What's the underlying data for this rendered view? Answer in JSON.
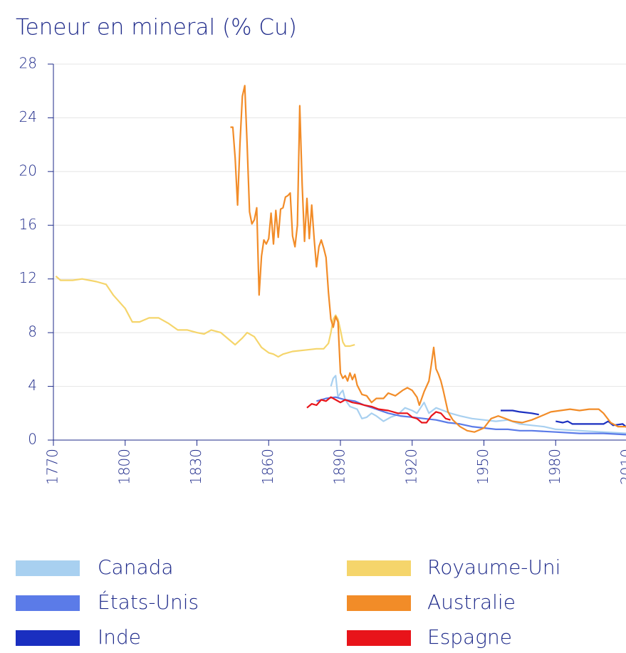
{
  "chart_data": {
    "type": "line",
    "title": "Teneur en mineral (% Cu)",
    "xlim": [
      1770,
      2010
    ],
    "xticks": [
      1770,
      1800,
      1830,
      1860,
      1890,
      1920,
      1950,
      1980,
      2010
    ],
    "ylim": [
      0,
      28
    ],
    "yticks": [
      0,
      4,
      8,
      12,
      16,
      20,
      24,
      28
    ],
    "grid": true,
    "series": [
      {
        "name": "Canada",
        "color": "#a8d0f0",
        "x": [
          1886,
          1887,
          1888,
          1889,
          1890,
          1891,
          1892,
          1894,
          1897,
          1899,
          1901,
          1903,
          1905,
          1908,
          1911,
          1914,
          1917,
          1920,
          1922,
          1925,
          1927,
          1930,
          1933,
          1936,
          1940,
          1945,
          1950,
          1955,
          1960,
          1965,
          1970,
          1975,
          1980,
          1990,
          2000,
          2010
        ],
        "values": [
          4.0,
          4.6,
          4.8,
          3.2,
          3.5,
          3.7,
          3.0,
          2.5,
          2.3,
          1.6,
          1.7,
          2.0,
          1.8,
          1.4,
          1.7,
          1.9,
          2.4,
          2.2,
          2.0,
          2.8,
          2.0,
          2.4,
          2.2,
          2.0,
          1.8,
          1.6,
          1.5,
          1.4,
          1.5,
          1.2,
          1.1,
          1.0,
          0.8,
          0.7,
          0.6,
          0.5
        ]
      },
      {
        "name": "États-Unis",
        "color": "#5b7be8",
        "x": [
          1880,
          1884,
          1888,
          1892,
          1896,
          1900,
          1905,
          1910,
          1915,
          1920,
          1925,
          1930,
          1935,
          1940,
          1945,
          1950,
          1955,
          1960,
          1965,
          1970,
          1980,
          1990,
          2000,
          2010
        ],
        "values": [
          2.9,
          3.1,
          3.2,
          3.0,
          2.9,
          2.6,
          2.3,
          2.0,
          1.8,
          1.7,
          1.6,
          1.5,
          1.3,
          1.2,
          1.0,
          0.9,
          0.8,
          0.8,
          0.7,
          0.7,
          0.6,
          0.5,
          0.5,
          0.4
        ]
      },
      {
        "name": "Inde",
        "color": "#1a2fc0",
        "x": [
          1957,
          1962,
          1965,
          1970,
          1973,
          1976,
          1980,
          1983,
          1985,
          1987,
          1995,
          2000,
          2002,
          2004,
          2008,
          2010
        ],
        "values": [
          2.2,
          2.2,
          2.1,
          2.0,
          1.9,
          null,
          1.4,
          1.3,
          1.4,
          1.2,
          1.2,
          1.2,
          1.4,
          1.1,
          1.2,
          0.9
        ]
      },
      {
        "name": "Royaume-Uni",
        "color": "#f5d56b",
        "x": [
          1771,
          1773,
          1778,
          1782,
          1788,
          1792,
          1795,
          1800,
          1803,
          1806,
          1810,
          1814,
          1818,
          1822,
          1826,
          1830,
          1833,
          1836,
          1840,
          1844,
          1846,
          1849,
          1851,
          1854,
          1857,
          1860,
          1862,
          1864,
          1866,
          1870,
          1875,
          1880,
          1883,
          1885,
          1886,
          1887,
          1888,
          1889,
          1890,
          1891,
          1892,
          1894,
          1896
        ],
        "values": [
          12.2,
          11.9,
          11.9,
          12.0,
          11.8,
          11.6,
          10.8,
          9.8,
          8.8,
          8.8,
          9.1,
          9.1,
          8.7,
          8.2,
          8.2,
          8.0,
          7.9,
          8.2,
          8.0,
          7.4,
          7.1,
          7.6,
          8.0,
          7.7,
          6.9,
          6.5,
          6.4,
          6.2,
          6.4,
          6.6,
          6.7,
          6.8,
          6.8,
          7.2,
          8.0,
          9.0,
          9.3,
          9.0,
          8.2,
          7.3,
          7.0,
          7.0,
          7.1
        ]
      },
      {
        "name": "Australie",
        "color": "#f28c28",
        "x": [
          1844,
          1845,
          1846,
          1847,
          1848,
          1849,
          1850,
          1851,
          1852,
          1853,
          1854,
          1855,
          1856,
          1857,
          1858,
          1859,
          1860,
          1861,
          1862,
          1863,
          1864,
          1865,
          1866,
          1867,
          1868,
          1869,
          1870,
          1871,
          1872,
          1873,
          1874,
          1875,
          1876,
          1877,
          1878,
          1879,
          1880,
          1881,
          1882,
          1883,
          1884,
          1885,
          1886,
          1887,
          1888,
          1889,
          1890,
          1891,
          1892,
          1893,
          1894,
          1895,
          1896,
          1897,
          1899,
          1901,
          1903,
          1905,
          1908,
          1910,
          1913,
          1916,
          1918,
          1920,
          1922,
          1923,
          1925,
          1927,
          1928,
          1929,
          1930,
          1931,
          1932,
          1933,
          1935,
          1937,
          1940,
          1943,
          1946,
          1950,
          1953,
          1956,
          1959,
          1962,
          1966,
          1970,
          1974,
          1978,
          1982,
          1986,
          1990,
          1994,
          1998,
          2000,
          2003,
          2006,
          2010
        ],
        "values": [
          23.3,
          23.3,
          21,
          17.5,
          22,
          25.6,
          26.4,
          22,
          17,
          16.1,
          16.4,
          17.3,
          10.8,
          13.7,
          14.9,
          14.6,
          15,
          16.9,
          14.6,
          17.1,
          15.1,
          17.2,
          17.3,
          18.1,
          18.2,
          18.4,
          15.2,
          14.4,
          16,
          24.9,
          19,
          14.8,
          18,
          15,
          17.5,
          15,
          12.9,
          14.4,
          14.9,
          14.3,
          13.6,
          11,
          9.0,
          8.4,
          9.2,
          8.8,
          5.0,
          4.6,
          4.8,
          4.4,
          5.0,
          4.5,
          4.9,
          4.1,
          3.4,
          3.3,
          2.8,
          3.1,
          3.1,
          3.5,
          3.3,
          3.7,
          3.9,
          3.7,
          3.2,
          2.6,
          3.6,
          4.4,
          5.6,
          6.9,
          5.3,
          4.9,
          4.4,
          3.7,
          2.1,
          1.5,
          1.0,
          0.7,
          0.6,
          0.9,
          1.6,
          1.8,
          1.6,
          1.4,
          1.3,
          1.5,
          1.8,
          2.1,
          2.2,
          2.3,
          2.2,
          2.3,
          2.3,
          2.0,
          1.3,
          1.0,
          1.0
        ]
      },
      {
        "name": "Espagne",
        "color": "#e8141a",
        "x": [
          1876,
          1878,
          1880,
          1882,
          1884,
          1886,
          1888,
          1890,
          1892,
          1895,
          1898,
          1900,
          1903,
          1906,
          1910,
          1914,
          1918,
          1920,
          1922,
          1924,
          1926,
          1928,
          1930,
          1932,
          1934,
          1936
        ],
        "values": [
          2.4,
          2.7,
          2.6,
          3.0,
          2.9,
          3.2,
          3.0,
          2.8,
          3.0,
          2.8,
          2.7,
          2.6,
          2.5,
          2.3,
          2.2,
          2.0,
          2.0,
          1.7,
          1.6,
          1.3,
          1.3,
          1.8,
          2.1,
          2.0,
          1.6,
          1.5
        ]
      }
    ]
  }
}
